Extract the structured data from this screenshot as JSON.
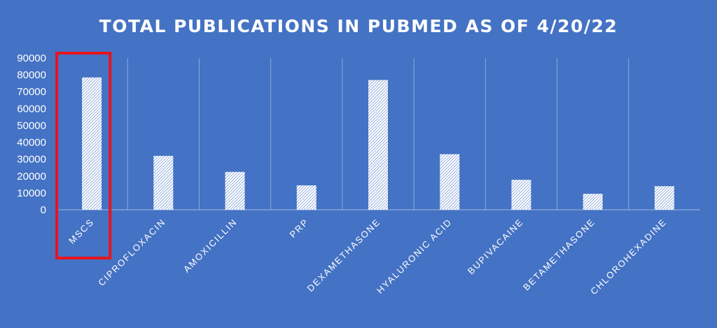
{
  "chart_data": {
    "type": "bar",
    "title": "TOTAL PUBLICATIONS IN PUBMED AS OF 4/20/22",
    "xlabel": "",
    "ylabel": "",
    "categories": [
      "MSCS",
      "CIPROFLOXACIN",
      "AMOXICILLIN",
      "PRP",
      "DEXAMETHASONE",
      "HYALURONIC ACID",
      "BUPIVACAINE",
      "BETAMETHASONE",
      "CHLOROHEXADINE"
    ],
    "values": [
      78500,
      32000,
      22500,
      14500,
      77000,
      33000,
      17800,
      9500,
      14000
    ],
    "ylim": [
      0,
      90000
    ],
    "yticks": [
      "0",
      "10000",
      "20000",
      "30000",
      "40000",
      "50000",
      "60000",
      "70000",
      "80000",
      "90000"
    ],
    "grid": "vertical category separators",
    "legend": "none",
    "highlighted_category": "MSCS",
    "colors": {
      "background": "#4472c4",
      "bar_fill": "#ffffff",
      "bar_hatch": "#4472c4",
      "highlight_box": "#e8141d",
      "text": "#ffffff"
    }
  }
}
